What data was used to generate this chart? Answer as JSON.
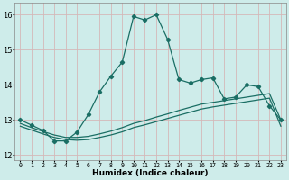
{
  "xlabel": "Humidex (Indice chaleur)",
  "background_color": "#ceecea",
  "grid_color": "#b8dcda",
  "line_color": "#1a6e64",
  "xlim_min": -0.5,
  "xlim_max": 23.5,
  "ylim_min": 11.85,
  "ylim_max": 16.35,
  "yticks": [
    12,
    13,
    14,
    15,
    16
  ],
  "xticks": [
    0,
    1,
    2,
    3,
    4,
    5,
    6,
    7,
    8,
    9,
    10,
    11,
    12,
    13,
    14,
    15,
    16,
    17,
    18,
    19,
    20,
    21,
    22,
    23
  ],
  "main_x": [
    0,
    1,
    2,
    3,
    4,
    5,
    6,
    7,
    8,
    9,
    10,
    11,
    12,
    13,
    14,
    15,
    16,
    17,
    18,
    19,
    20,
    21,
    22,
    23
  ],
  "main_y": [
    13.0,
    12.85,
    12.7,
    12.4,
    12.4,
    12.65,
    13.15,
    13.8,
    14.25,
    14.65,
    15.95,
    15.85,
    16.0,
    15.3,
    14.15,
    14.05,
    14.15,
    14.2,
    13.6,
    13.65,
    14.0,
    13.95,
    13.4,
    13.0
  ],
  "flat1_x": [
    0,
    1,
    2,
    3,
    4,
    5,
    6,
    7,
    8,
    9,
    10,
    11,
    12,
    13,
    14,
    15,
    16,
    17,
    18,
    19,
    20,
    21,
    22,
    23
  ],
  "flat1_y": [
    12.9,
    12.78,
    12.67,
    12.57,
    12.5,
    12.5,
    12.53,
    12.6,
    12.68,
    12.78,
    12.9,
    12.98,
    13.08,
    13.17,
    13.27,
    13.36,
    13.45,
    13.5,
    13.55,
    13.6,
    13.65,
    13.7,
    13.75,
    13.0
  ],
  "flat2_x": [
    0,
    1,
    2,
    3,
    4,
    5,
    6,
    7,
    8,
    9,
    10,
    11,
    12,
    13,
    14,
    15,
    16,
    17,
    18,
    19,
    20,
    21,
    22,
    23
  ],
  "flat2_y": [
    12.82,
    12.71,
    12.6,
    12.5,
    12.44,
    12.42,
    12.44,
    12.5,
    12.57,
    12.66,
    12.78,
    12.86,
    12.95,
    13.04,
    13.13,
    13.22,
    13.31,
    13.37,
    13.42,
    13.47,
    13.52,
    13.57,
    13.62,
    12.82
  ]
}
